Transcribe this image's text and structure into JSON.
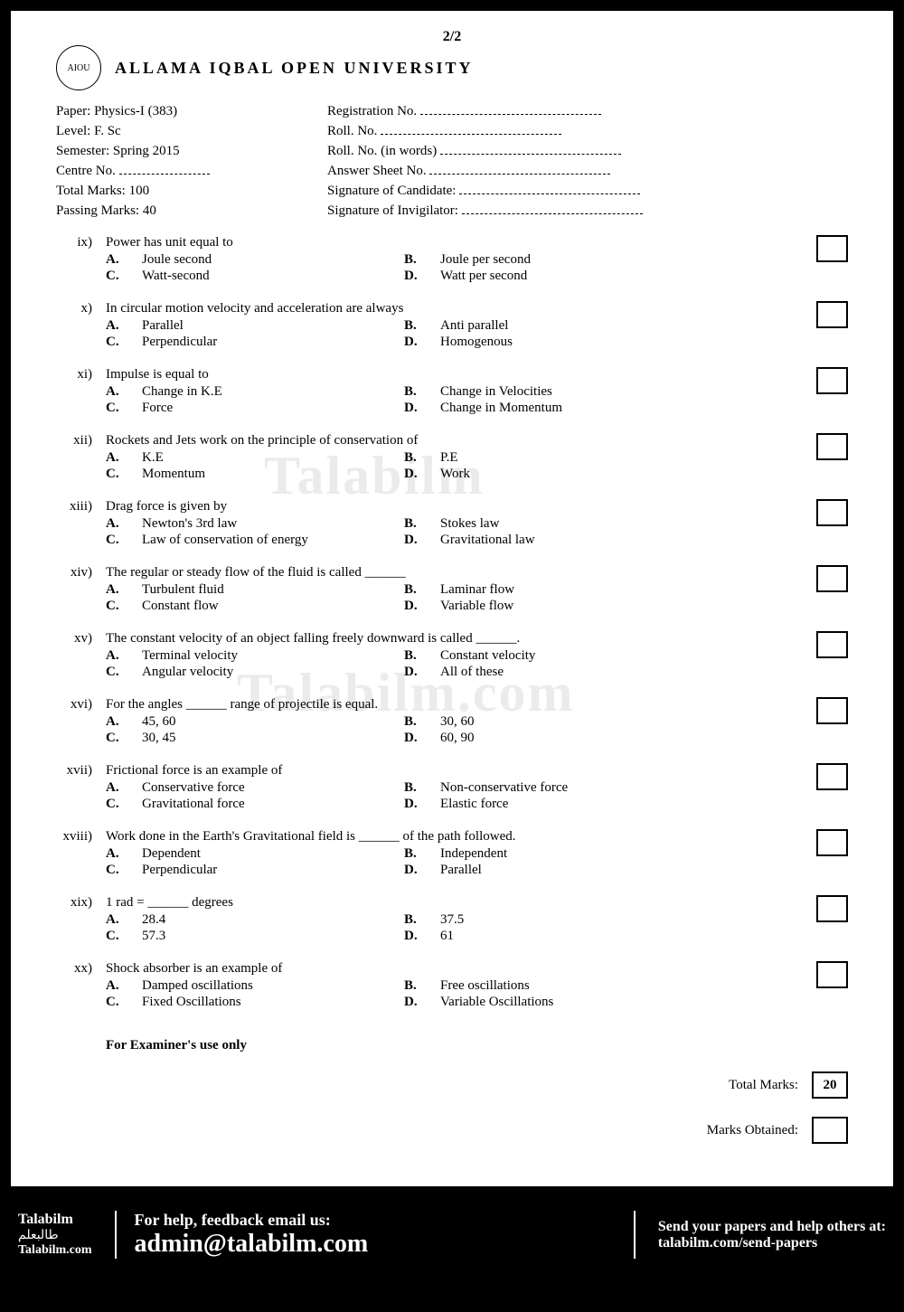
{
  "page_number": "2/2",
  "university": "ALLAMA IQBAL OPEN UNIVERSITY",
  "header": {
    "paper": "Paper: Physics-I (383)",
    "level": "Level: F. Sc",
    "semester": "Semester: Spring 2015",
    "centre": "Centre No. ",
    "total_marks": "Total Marks: 100",
    "passing_marks": "Passing Marks: 40",
    "reg_no": "Registration No.",
    "roll_no": "Roll. No.",
    "roll_words": "Roll. No. (in words)",
    "answer_sheet": "Answer Sheet No.",
    "sig_candidate": "Signature of Candidate:",
    "sig_invigilator": "Signature of Invigilator:"
  },
  "questions": [
    {
      "num": "ix)",
      "text": "Power has unit equal to",
      "a": "Joule second",
      "b": "Joule per second",
      "c": "Watt-second",
      "d": "Watt per second"
    },
    {
      "num": "x)",
      "text": "In circular motion velocity and acceleration are always",
      "a": "Parallel",
      "b": "Anti parallel",
      "c": "Perpendicular",
      "d": "Homogenous"
    },
    {
      "num": "xi)",
      "text": "Impulse is equal to",
      "a": "Change in K.E",
      "b": "Change in Velocities",
      "c": "Force",
      "d": "Change in Momentum"
    },
    {
      "num": "xii)",
      "text": "Rockets and Jets work on the principle of conservation of",
      "a": "K.E",
      "b": "P.E",
      "c": "Momentum",
      "d": "Work"
    },
    {
      "num": "xiii)",
      "text": "Drag force is given by",
      "a": "Newton's 3rd law",
      "b": "Stokes law",
      "c": "Law of conservation of energy",
      "d": "Gravitational law"
    },
    {
      "num": "xiv)",
      "text": "The regular or steady flow of the fluid is called ______",
      "a": "Turbulent fluid",
      "b": "Laminar flow",
      "c": "Constant flow",
      "d": "Variable flow"
    },
    {
      "num": "xv)",
      "text": "The constant velocity of an object falling freely downward is called ______.",
      "a": "Terminal velocity",
      "b": "Constant velocity",
      "c": "Angular velocity",
      "d": "All of these"
    },
    {
      "num": "xvi)",
      "text": "For the angles ______ range of projectile is equal.",
      "a": "45, 60",
      "b": "30, 60",
      "c": "30, 45",
      "d": "60, 90"
    },
    {
      "num": "xvii)",
      "text": "Frictional force is an example of",
      "a": "Conservative force",
      "b": "Non-conservative force",
      "c": "Gravitational force",
      "d": "Elastic force"
    },
    {
      "num": "xviii)",
      "text": "Work done in the Earth's Gravitational field is ______ of the path followed.",
      "a": "Dependent",
      "b": "Independent",
      "c": "Perpendicular",
      "d": "Parallel"
    },
    {
      "num": "xix)",
      "text": "1 rad = ______ degrees",
      "a": "28.4",
      "b": "37.5",
      "c": "57.3",
      "d": "61"
    },
    {
      "num": "xx)",
      "text": "Shock absorber is an example of",
      "a": "Damped oscillations",
      "b": "Free oscillations",
      "c": "Fixed Oscillations",
      "d": "Variable Oscillations"
    }
  ],
  "examiner_label": "For Examiner's use only",
  "total_marks_label": "Total Marks:",
  "total_marks_value": "20",
  "marks_obtained_label": "Marks Obtained:",
  "watermarks": {
    "wm1": "Talabilm",
    "wm2": "Talabilm.com"
  },
  "footer": {
    "brand": "Talabilm",
    "urdu": "طالبعلم",
    "site": "Talabilm.com",
    "help_line": "For help, feedback email us:",
    "email": "admin@talabilm.com",
    "send_line1": "Send your papers and help others at:",
    "send_url": "talabilm.com/send-papers"
  }
}
